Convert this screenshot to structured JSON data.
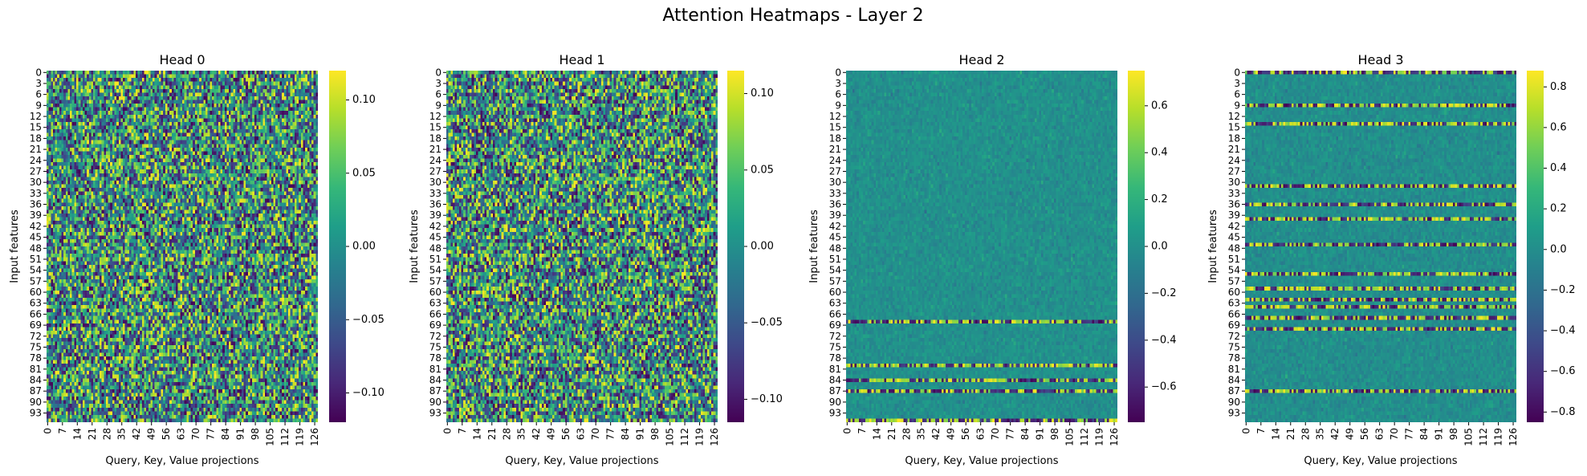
{
  "figure": {
    "title": "Attention Heatmaps - Layer 2"
  },
  "colors": {
    "viridis": [
      "#440154",
      "#482878",
      "#3e4989",
      "#31688e",
      "#26828e",
      "#1f9e89",
      "#35b779",
      "#6ece58",
      "#b5de2b",
      "#fde725"
    ]
  },
  "chart_data": [
    {
      "type": "heatmap",
      "title": "Head 0",
      "xlabel": "Query, Key, Value projections",
      "ylabel": "Input features",
      "n_rows": 96,
      "n_cols": 128,
      "x_tick_labels": [
        "0",
        "7",
        "14",
        "21",
        "28",
        "35",
        "42",
        "49",
        "56",
        "63",
        "70",
        "77",
        "84",
        "91",
        "98",
        "105",
        "112",
        "119",
        "126"
      ],
      "y_tick_labels": [
        "0",
        "3",
        "6",
        "9",
        "12",
        "15",
        "18",
        "21",
        "24",
        "27",
        "30",
        "33",
        "36",
        "39",
        "42",
        "45",
        "48",
        "51",
        "54",
        "57",
        "60",
        "63",
        "66",
        "69",
        "72",
        "75",
        "78",
        "81",
        "84",
        "87",
        "90",
        "93"
      ],
      "value_range": [
        -0.12,
        0.12
      ],
      "colorbar_ticks": [
        "0.10",
        "0.05",
        "0.00",
        "−0.05",
        "−0.10"
      ],
      "colorbar_tick_values": [
        0.1,
        0.05,
        0.0,
        -0.05,
        -0.1
      ],
      "pattern": "uniform random",
      "highlight_rows": []
    },
    {
      "type": "heatmap",
      "title": "Head 1",
      "xlabel": "Query, Key, Value projections",
      "ylabel": "Input features",
      "n_rows": 96,
      "n_cols": 128,
      "x_tick_labels": [
        "0",
        "7",
        "14",
        "21",
        "28",
        "35",
        "42",
        "49",
        "56",
        "63",
        "70",
        "77",
        "84",
        "91",
        "98",
        "105",
        "112",
        "119",
        "126"
      ],
      "y_tick_labels": [
        "0",
        "3",
        "6",
        "9",
        "12",
        "15",
        "18",
        "21",
        "24",
        "27",
        "30",
        "33",
        "36",
        "39",
        "42",
        "45",
        "48",
        "51",
        "54",
        "57",
        "60",
        "63",
        "66",
        "69",
        "72",
        "75",
        "78",
        "81",
        "84",
        "87",
        "90",
        "93"
      ],
      "value_range": [
        -0.115,
        0.115
      ],
      "colorbar_ticks": [
        "0.10",
        "0.05",
        "0.00",
        "−0.05",
        "−0.10"
      ],
      "colorbar_tick_values": [
        0.1,
        0.05,
        0.0,
        -0.05,
        -0.1
      ],
      "pattern": "uniform random",
      "highlight_rows": []
    },
    {
      "type": "heatmap",
      "title": "Head 2",
      "xlabel": "Query, Key, Value projections",
      "ylabel": "Input features",
      "n_rows": 96,
      "n_cols": 128,
      "x_tick_labels": [
        "0",
        "7",
        "14",
        "21",
        "28",
        "35",
        "42",
        "49",
        "56",
        "63",
        "70",
        "77",
        "84",
        "91",
        "98",
        "105",
        "112",
        "119",
        "126"
      ],
      "y_tick_labels": [
        "0",
        "3",
        "6",
        "9",
        "12",
        "15",
        "18",
        "21",
        "24",
        "27",
        "30",
        "33",
        "36",
        "39",
        "42",
        "45",
        "48",
        "51",
        "54",
        "57",
        "60",
        "63",
        "66",
        "69",
        "72",
        "75",
        "78",
        "81",
        "84",
        "87",
        "90",
        "93"
      ],
      "value_range": [
        -0.75,
        0.75
      ],
      "colorbar_ticks": [
        "0.6",
        "0.4",
        "0.2",
        "0.0",
        "−0.2",
        "−0.4",
        "−0.6"
      ],
      "colorbar_tick_values": [
        0.6,
        0.4,
        0.2,
        0.0,
        -0.2,
        -0.4,
        -0.6
      ],
      "pattern": "low noise with strong rows",
      "highlight_rows": [
        68,
        80,
        84,
        87,
        95
      ]
    },
    {
      "type": "heatmap",
      "title": "Head 3",
      "xlabel": "Query, Key, Value projections",
      "ylabel": "Input features",
      "n_rows": 96,
      "n_cols": 128,
      "x_tick_labels": [
        "0",
        "7",
        "14",
        "21",
        "28",
        "35",
        "42",
        "49",
        "56",
        "63",
        "70",
        "77",
        "84",
        "91",
        "98",
        "105",
        "112",
        "119",
        "126"
      ],
      "y_tick_labels": [
        "0",
        "3",
        "6",
        "9",
        "12",
        "15",
        "18",
        "21",
        "24",
        "27",
        "30",
        "33",
        "36",
        "39",
        "42",
        "45",
        "48",
        "51",
        "54",
        "57",
        "60",
        "63",
        "66",
        "69",
        "72",
        "75",
        "78",
        "81",
        "84",
        "87",
        "90",
        "93"
      ],
      "value_range": [
        -0.85,
        0.88
      ],
      "colorbar_ticks": [
        "0.8",
        "0.6",
        "0.4",
        "0.2",
        "0.0",
        "−0.2",
        "−0.4",
        "−0.6",
        "−0.8"
      ],
      "colorbar_tick_values": [
        0.8,
        0.6,
        0.4,
        0.2,
        0.0,
        -0.2,
        -0.4,
        -0.6,
        -0.8
      ],
      "pattern": "low noise with strong rows",
      "highlight_rows": [
        0,
        9,
        14,
        31,
        36,
        40,
        47,
        55,
        59,
        62,
        64,
        67,
        70,
        87
      ]
    }
  ]
}
